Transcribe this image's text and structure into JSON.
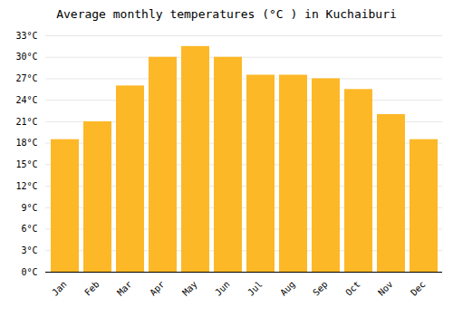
{
  "chart_data": {
    "type": "bar",
    "title": "Average monthly temperatures (°C ) in Kuchaiburi",
    "categories": [
      "Jan",
      "Feb",
      "Mar",
      "Apr",
      "May",
      "Jun",
      "Jul",
      "Aug",
      "Sep",
      "Oct",
      "Nov",
      "Dec"
    ],
    "values": [
      18.5,
      21.0,
      26.0,
      30.0,
      31.5,
      30.0,
      27.5,
      27.5,
      27.0,
      25.5,
      22.0,
      18.5
    ],
    "color": "#FDB827",
    "ylim": [
      0,
      33
    ],
    "yticks": [
      {
        "value": 0,
        "label": "0°C"
      },
      {
        "value": 3,
        "label": "3°C"
      },
      {
        "value": 6,
        "label": "6°C"
      },
      {
        "value": 9,
        "label": "9°C"
      },
      {
        "value": 12,
        "label": "12°C"
      },
      {
        "value": 15,
        "label": "15°C"
      },
      {
        "value": 18,
        "label": "18°C"
      },
      {
        "value": 21,
        "label": "21°C"
      },
      {
        "value": 24,
        "label": "24°C"
      },
      {
        "value": 27,
        "label": "27°C"
      },
      {
        "value": 30,
        "label": "30°C"
      },
      {
        "value": 33,
        "label": "33°C"
      }
    ],
    "grid": true
  }
}
